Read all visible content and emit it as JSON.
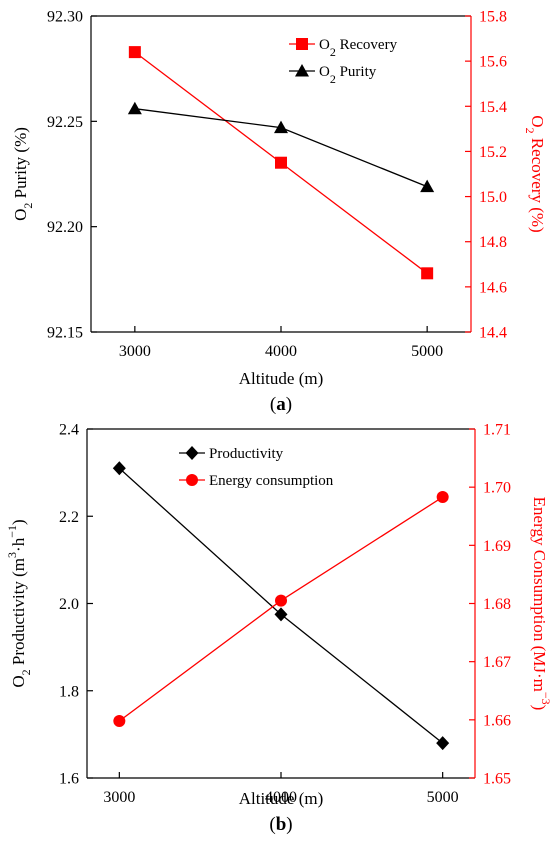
{
  "chart_data": [
    {
      "type": "line",
      "panel_label": "(a)",
      "x": [
        3000,
        4000,
        5000
      ],
      "x_ticks": [
        "3000",
        "4000",
        "5000"
      ],
      "xlabel": "Altitude (m)",
      "ylabel_left": "O2 Purity (%)",
      "ylabel_right": "O2 Recovery (%)",
      "ylim_left": [
        92.15,
        92.3
      ],
      "ylim_right": [
        14.4,
        15.8
      ],
      "yticks_left": [
        "92.15",
        "92.20",
        "92.25",
        "92.30"
      ],
      "yticks_right": [
        "14.4",
        "14.6",
        "14.8",
        "15.0",
        "15.2",
        "15.4",
        "15.6",
        "15.8"
      ],
      "legend_position": "top-right",
      "series": [
        {
          "name": "O2 Recovery",
          "axis": "right",
          "color": "#ff0000",
          "marker": "square",
          "values": [
            15.64,
            15.15,
            14.66
          ]
        },
        {
          "name": "O2 Purity",
          "axis": "left",
          "color": "#000000",
          "marker": "triangle",
          "values": [
            92.256,
            92.247,
            92.219
          ]
        }
      ]
    },
    {
      "type": "line",
      "panel_label": "(b)",
      "x": [
        3000,
        4000,
        5000
      ],
      "x_ticks": [
        "3000",
        "4000",
        "5000"
      ],
      "xlabel": "Altitude (m)",
      "ylabel_left": "O2 Productivity (m3·h−1)",
      "ylabel_right": "Energy Consumption (MJ·m−3)",
      "ylim_left": [
        1.6,
        2.4
      ],
      "ylim_right": [
        1.65,
        1.71
      ],
      "yticks_left": [
        "1.6",
        "1.8",
        "2.0",
        "2.2",
        "2.4"
      ],
      "yticks_right": [
        "1.65",
        "1.66",
        "1.67",
        "1.68",
        "1.69",
        "1.70",
        "1.71"
      ],
      "legend_position": "top-center",
      "series": [
        {
          "name": "Productivity",
          "axis": "left",
          "color": "#000000",
          "marker": "diamond",
          "values": [
            2.31,
            1.975,
            1.68
          ]
        },
        {
          "name": "Energy consumption",
          "axis": "right",
          "color": "#ff0000",
          "marker": "circle",
          "values": [
            1.6598,
            1.6805,
            1.6983
          ]
        }
      ]
    }
  ]
}
